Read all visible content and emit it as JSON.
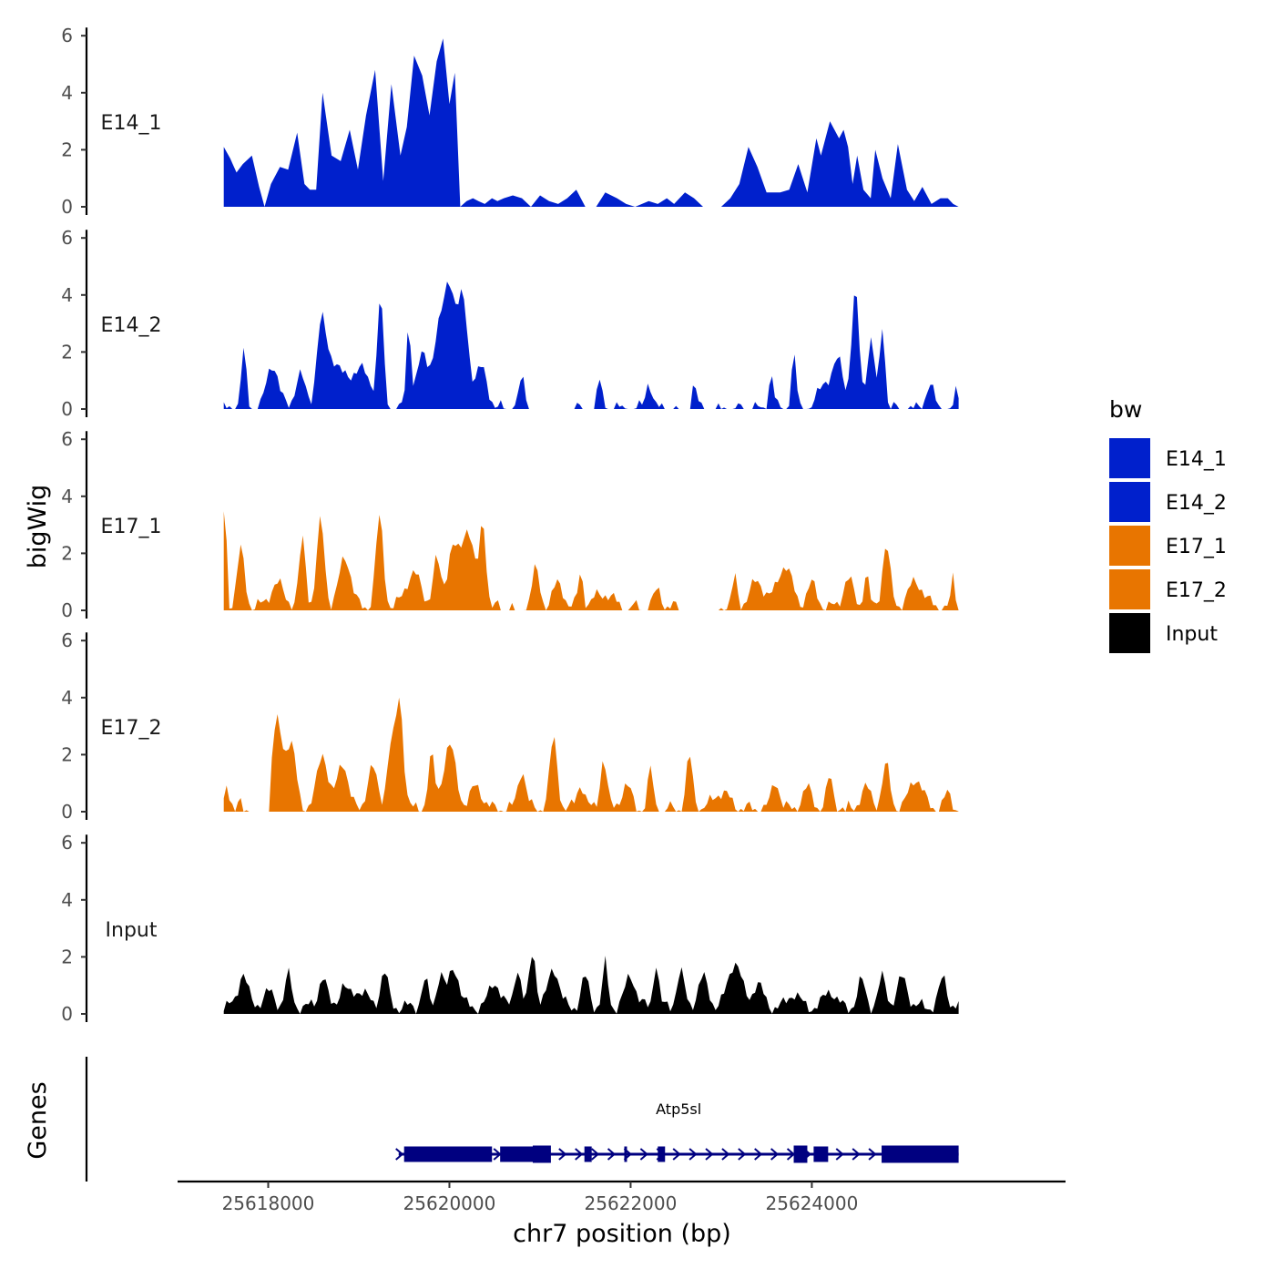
{
  "chart_data": {
    "type": "area",
    "title": "",
    "xlabel": "chr7 position (bp)",
    "ylabel": "bigWig",
    "genes_label": "Genes",
    "xlim": [
      25617000,
      25626800
    ],
    "data_range": [
      25617510,
      25625620
    ],
    "ylim": [
      0,
      6
    ],
    "yticks": [
      0,
      2,
      4,
      6
    ],
    "xticks": [
      25618000,
      25620000,
      25622000,
      25624000
    ],
    "xtick_labels": [
      "25618000",
      "25620000",
      "25622000",
      "25624000"
    ],
    "legend": {
      "title": "bw",
      "position": "right",
      "entries": [
        {
          "label": "E14_1",
          "color": "#0020CC"
        },
        {
          "label": "E14_2",
          "color": "#0020CC"
        },
        {
          "label": "E17_1",
          "color": "#E87500"
        },
        {
          "label": "E17_2",
          "color": "#E87500"
        },
        {
          "label": "Input",
          "color": "#000000"
        }
      ]
    },
    "tracks": [
      {
        "name": "E14_1",
        "color": "#0020CC",
        "x": [
          25617510,
          25617580,
          25617650,
          25617720,
          25617820,
          25617900,
          25617960,
          25618030,
          25618130,
          25618220,
          25618320,
          25618400,
          25618460,
          25618530,
          25618600,
          25618700,
          25618800,
          25618900,
          25618990,
          25619080,
          25619180,
          25619270,
          25619360,
          25619460,
          25619530,
          25619610,
          25619700,
          25619780,
          25619860,
          25619930,
          25620000,
          25620060,
          25620120,
          25620190,
          25620260,
          25620320,
          25620390,
          25620470,
          25620530,
          25620600,
          25620700,
          25620800,
          25620900,
          25621000,
          25621100,
          25621200,
          25621300,
          25621400,
          25621500,
          25621620,
          25621720,
          25621850,
          25621950,
          25622050,
          25622200,
          25622300,
          25622400,
          25622480,
          25622600,
          25622700,
          25622800,
          25622900,
          25623000,
          25623100,
          25623200,
          25623300,
          25623400,
          25623500,
          25623650,
          25623750,
          25623850,
          25623950,
          25624050,
          25624100,
          25624200,
          25624300,
          25624350,
          25624400,
          25624450,
          25624500,
          25624570,
          25624650,
          25624700,
          25624780,
          25624870,
          25624950,
          25625050,
          25625130,
          25625220,
          25625320,
          25625420,
          25625500,
          25625560,
          25625620
        ],
        "y": [
          2.1,
          1.7,
          1.2,
          1.5,
          1.8,
          0.7,
          0,
          0.8,
          1.4,
          1.3,
          2.6,
          0.8,
          0.6,
          0.6,
          4.0,
          1.8,
          1.6,
          2.7,
          1.3,
          3.2,
          4.8,
          0.9,
          4.3,
          1.8,
          2.8,
          5.3,
          4.6,
          3.2,
          5.1,
          5.9,
          3.6,
          4.7,
          0,
          0.2,
          0.3,
          0.2,
          0.1,
          0.3,
          0.2,
          0.3,
          0.4,
          0.3,
          0,
          0.4,
          0.2,
          0.1,
          0.3,
          0.6,
          0,
          0,
          0.5,
          0.3,
          0.1,
          0,
          0.2,
          0.1,
          0.3,
          0.1,
          0.5,
          0.3,
          0,
          0,
          0,
          0.3,
          0.8,
          2.1,
          1.4,
          0.5,
          0.5,
          0.6,
          1.5,
          0.5,
          2.4,
          1.8,
          3.0,
          2.4,
          2.7,
          2.1,
          0.8,
          1.8,
          0.6,
          0.3,
          2.0,
          1.0,
          0.3,
          2.2,
          0.6,
          0.2,
          0.7,
          0.1,
          0.3,
          0.3,
          0.1,
          0
        ],
        "pixel_hint": null
      }
    ]
  },
  "panel_labels": [
    "E14_1",
    "E14_2",
    "E17_1",
    "E17_2",
    "Input"
  ],
  "gene": {
    "name": "Atp5sl",
    "start": 25619440,
    "end": 25625620,
    "strand": "+"
  }
}
